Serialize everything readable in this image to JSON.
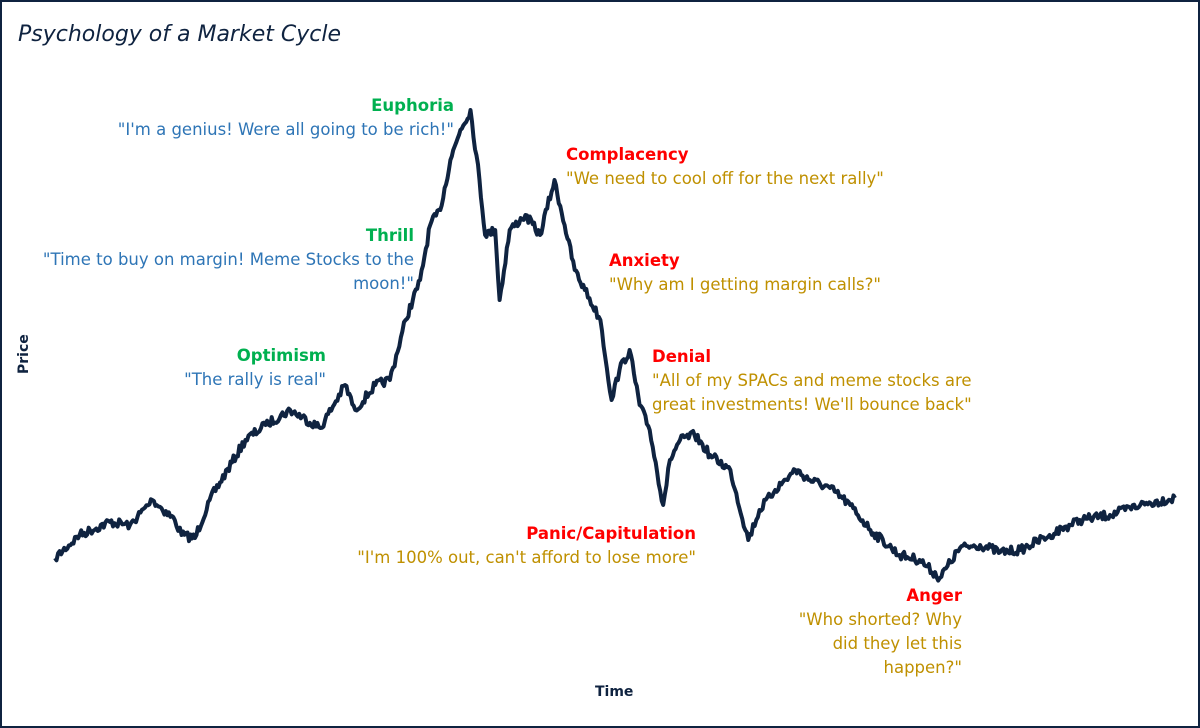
{
  "chart_data": {
    "type": "line",
    "title": "Psychology of a Market Cycle",
    "xlabel": "Time",
    "ylabel": "Price",
    "ticks": "none",
    "grid": false,
    "legend": "none",
    "line_color": "#0f2340",
    "x": [
      0,
      2.2,
      4.9,
      6.7,
      8.7,
      10.7,
      11.3,
      12.5,
      13.8,
      17,
      18.8,
      21,
      23.7,
      25.9,
      26.8,
      28.6,
      29.9,
      31.3,
      32.6,
      33.5,
      34.4,
      35.3,
      36.2,
      37.1,
      37.9,
      38.4,
      39.3,
      39.7,
      40.6,
      42,
      43.3,
      44.6,
      45.5,
      46.4,
      47.3,
      48.7,
      49.7,
      50.4,
      51.3,
      52.2,
      53.1,
      54.3,
      54.9,
      55.8,
      57.1,
      58.5,
      60.3,
      61.9,
      62.9,
      64.3,
      66.1,
      67.4,
      69.2,
      71,
      72.8,
      75.4,
      77.2,
      79,
      80.8,
      82.6,
      84.4,
      86.2,
      88.8,
      91.5,
      94.2,
      96.9,
      100
    ],
    "y": [
      8.4,
      13,
      15.6,
      15,
      20,
      16,
      13,
      12.4,
      20,
      32,
      35,
      38,
      34.4,
      43,
      38,
      43,
      44,
      56,
      64,
      75,
      78,
      88,
      94,
      98,
      84,
      73,
      74,
      60,
      74,
      77,
      73,
      84,
      75,
      66,
      62,
      56,
      40,
      46,
      50,
      39,
      34,
      19,
      28,
      32,
      33,
      29,
      26,
      12,
      18,
      22,
      26,
      24,
      22.4,
      19,
      14,
      9,
      8,
      4.4,
      10.4,
      11,
      9.6,
      10,
      13,
      16,
      17,
      19,
      20.4
    ],
    "annotations": [
      {
        "stage": "Euphoria",
        "quote": "\"I'm a genius! Were all going to be rich!\"",
        "stage_color": "#00b050",
        "quote_color": "#2e75b6"
      },
      {
        "stage": "Complacency",
        "quote": "\"We need to cool off for the next rally\"",
        "stage_color": "#ff0000",
        "quote_color": "#bf9000"
      },
      {
        "stage": "Thrill",
        "quote": "\"Time to buy on margin! Meme Stocks to the moon!\"",
        "stage_color": "#00b050",
        "quote_color": "#2e75b6"
      },
      {
        "stage": "Anxiety",
        "quote": "\"Why am I getting margin calls?\"",
        "stage_color": "#ff0000",
        "quote_color": "#bf9000"
      },
      {
        "stage": "Optimism",
        "quote": "\"The rally is real\"",
        "stage_color": "#00b050",
        "quote_color": "#2e75b6"
      },
      {
        "stage": "Denial",
        "quote": "\"All of my SPACs and meme stocks are great investments! We'll bounce back\"",
        "stage_color": "#ff0000",
        "quote_color": "#bf9000"
      },
      {
        "stage": "Panic/Capitulation",
        "quote": "\"I'm 100% out, can't afford to lose more\"",
        "stage_color": "#ff0000",
        "quote_color": "#bf9000"
      },
      {
        "stage": "Anger",
        "quote": "\"Who shorted? Why did they let this happen?\"",
        "stage_color": "#ff0000",
        "quote_color": "#bf9000"
      }
    ]
  }
}
